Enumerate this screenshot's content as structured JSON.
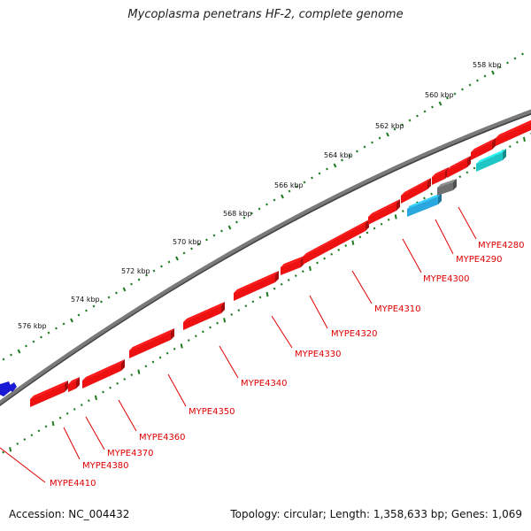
{
  "title": "Mycoplasma penetrans HF-2, complete genome",
  "footer": {
    "accession": "Accession: NC_004432",
    "summary": "Topology: circular; Length: 1,358,633 bp; Genes: 1,069"
  },
  "scale_labels": [
    "558 kbp",
    "560 kbp",
    "562 kbp",
    "564 kbp",
    "566 kbp",
    "568 kbp",
    "570 kbp",
    "572 kbp",
    "574 kbp",
    "576 kbp"
  ],
  "gene_labels": [
    "MYPE4280",
    "MYPE4290",
    "MYPE4300",
    "MYPE4310",
    "MYPE4320",
    "MYPE4330",
    "MYPE4340",
    "MYPE4350",
    "MYPE4360",
    "MYPE4370",
    "MYPE4380",
    "MYPE4410"
  ],
  "colors": {
    "forward_gene": "#ee1111",
    "label": "#e00000",
    "backbone": "#7a7a7a",
    "tick": "#1f7a1f",
    "rna_blue": "#29a8e0",
    "rna_cyan": "#1fc6c6",
    "pseudo_gray": "#707070",
    "gene_blue": "#1a1ad6"
  }
}
